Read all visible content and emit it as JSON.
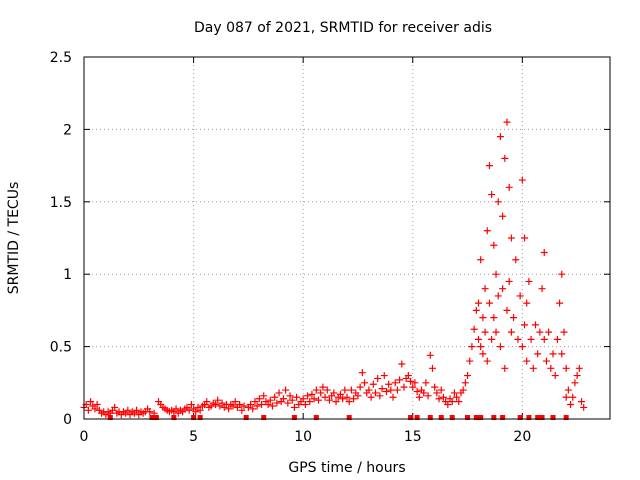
{
  "chart_data": {
    "type": "scatter",
    "title": "Day 087 of 2021, SRMTID for receiver adis",
    "xlabel": "GPS time / hours",
    "ylabel": "SRMTID / TECUs",
    "xlim": [
      0,
      24
    ],
    "ylim": [
      0,
      2.5
    ],
    "xticks": [
      0,
      5,
      10,
      15,
      20
    ],
    "yticks": [
      0,
      0.5,
      1,
      1.5,
      2,
      2.5
    ],
    "xtick_labels": [
      "0",
      "5",
      "10",
      "15",
      "20"
    ],
    "ytick_labels": [
      "0",
      "0.5",
      "1",
      "1.5",
      "2",
      "2.5"
    ],
    "grid": true,
    "marker": "+",
    "series": [
      {
        "name": "SRMTID",
        "color": "#ff0000",
        "points": [
          [
            0.0,
            0.08
          ],
          [
            0.1,
            0.1
          ],
          [
            0.2,
            0.06
          ],
          [
            0.3,
            0.12
          ],
          [
            0.4,
            0.09
          ],
          [
            0.5,
            0.07
          ],
          [
            0.6,
            0.1
          ],
          [
            0.7,
            0.06
          ],
          [
            0.8,
            0.04
          ],
          [
            0.9,
            0.05
          ],
          [
            1.0,
            0.03
          ],
          [
            1.1,
            0.05
          ],
          [
            1.2,
            0.04
          ],
          [
            1.3,
            0.06
          ],
          [
            1.4,
            0.08
          ],
          [
            1.5,
            0.04
          ],
          [
            1.6,
            0.05
          ],
          [
            1.7,
            0.03
          ],
          [
            1.8,
            0.05
          ],
          [
            1.9,
            0.04
          ],
          [
            2.0,
            0.06
          ],
          [
            2.1,
            0.03
          ],
          [
            2.2,
            0.05
          ],
          [
            2.3,
            0.04
          ],
          [
            2.4,
            0.06
          ],
          [
            2.5,
            0.03
          ],
          [
            2.6,
            0.05
          ],
          [
            2.7,
            0.04
          ],
          [
            2.8,
            0.05
          ],
          [
            2.9,
            0.07
          ],
          [
            3.0,
            0.05
          ],
          [
            3.2,
            0.04
          ],
          [
            3.4,
            0.12
          ],
          [
            3.5,
            0.1
          ],
          [
            3.6,
            0.08
          ],
          [
            3.7,
            0.07
          ],
          [
            3.8,
            0.06
          ],
          [
            3.9,
            0.05
          ],
          [
            4.0,
            0.06
          ],
          [
            4.1,
            0.05
          ],
          [
            4.2,
            0.07
          ],
          [
            4.3,
            0.04
          ],
          [
            4.4,
            0.06
          ],
          [
            4.5,
            0.05
          ],
          [
            4.6,
            0.07
          ],
          [
            4.7,
            0.08
          ],
          [
            4.8,
            0.06
          ],
          [
            4.9,
            0.1
          ],
          [
            5.0,
            0.07
          ],
          [
            5.1,
            0.05
          ],
          [
            5.2,
            0.08
          ],
          [
            5.3,
            0.06
          ],
          [
            5.4,
            0.09
          ],
          [
            5.5,
            0.1
          ],
          [
            5.6,
            0.12
          ],
          [
            5.7,
            0.08
          ],
          [
            5.8,
            0.09
          ],
          [
            5.9,
            0.11
          ],
          [
            6.0,
            0.1
          ],
          [
            6.1,
            0.13
          ],
          [
            6.2,
            0.09
          ],
          [
            6.3,
            0.11
          ],
          [
            6.4,
            0.08
          ],
          [
            6.5,
            0.1
          ],
          [
            6.6,
            0.07
          ],
          [
            6.7,
            0.1
          ],
          [
            6.8,
            0.09
          ],
          [
            6.9,
            0.12
          ],
          [
            7.0,
            0.08
          ],
          [
            7.1,
            0.1
          ],
          [
            7.2,
            0.06
          ],
          [
            7.3,
            0.09
          ],
          [
            7.5,
            0.08
          ],
          [
            7.6,
            0.1
          ],
          [
            7.7,
            0.07
          ],
          [
            7.8,
            0.12
          ],
          [
            7.9,
            0.09
          ],
          [
            8.0,
            0.14
          ],
          [
            8.1,
            0.1
          ],
          [
            8.2,
            0.16
          ],
          [
            8.3,
            0.12
          ],
          [
            8.4,
            0.1
          ],
          [
            8.5,
            0.13
          ],
          [
            8.6,
            0.09
          ],
          [
            8.7,
            0.15
          ],
          [
            8.8,
            0.11
          ],
          [
            8.9,
            0.18
          ],
          [
            9.0,
            0.12
          ],
          [
            9.1,
            0.14
          ],
          [
            9.2,
            0.2
          ],
          [
            9.3,
            0.11
          ],
          [
            9.4,
            0.16
          ],
          [
            9.5,
            0.13
          ],
          [
            9.6,
            0.08
          ],
          [
            9.7,
            0.15
          ],
          [
            9.8,
            0.1
          ],
          [
            9.9,
            0.12
          ],
          [
            10.0,
            0.14
          ],
          [
            10.1,
            0.1
          ],
          [
            10.2,
            0.16
          ],
          [
            10.3,
            0.12
          ],
          [
            10.4,
            0.17
          ],
          [
            10.5,
            0.14
          ],
          [
            10.6,
            0.2
          ],
          [
            10.7,
            0.13
          ],
          [
            10.8,
            0.18
          ],
          [
            10.9,
            0.22
          ],
          [
            11.0,
            0.15
          ],
          [
            11.1,
            0.2
          ],
          [
            11.2,
            0.13
          ],
          [
            11.3,
            0.16
          ],
          [
            11.4,
            0.18
          ],
          [
            11.5,
            0.12
          ],
          [
            11.6,
            0.15
          ],
          [
            11.7,
            0.17
          ],
          [
            11.8,
            0.14
          ],
          [
            11.9,
            0.2
          ],
          [
            12.0,
            0.15
          ],
          [
            12.1,
            0.12
          ],
          [
            12.2,
            0.2
          ],
          [
            12.3,
            0.14
          ],
          [
            12.4,
            0.18
          ],
          [
            12.5,
            0.16
          ],
          [
            12.6,
            0.22
          ],
          [
            12.7,
            0.32
          ],
          [
            12.8,
            0.25
          ],
          [
            12.9,
            0.18
          ],
          [
            13.0,
            0.2
          ],
          [
            13.1,
            0.15
          ],
          [
            13.2,
            0.24
          ],
          [
            13.3,
            0.18
          ],
          [
            13.4,
            0.28
          ],
          [
            13.5,
            0.16
          ],
          [
            13.6,
            0.21
          ],
          [
            13.7,
            0.3
          ],
          [
            13.8,
            0.19
          ],
          [
            13.9,
            0.24
          ],
          [
            14.0,
            0.2
          ],
          [
            14.1,
            0.15
          ],
          [
            14.2,
            0.25
          ],
          [
            14.3,
            0.2
          ],
          [
            14.4,
            0.27
          ],
          [
            14.5,
            0.38
          ],
          [
            14.6,
            0.22
          ],
          [
            14.7,
            0.28
          ],
          [
            14.8,
            0.3
          ],
          [
            14.9,
            0.26
          ],
          [
            15.0,
            0.22
          ],
          [
            15.1,
            0.25
          ],
          [
            15.2,
            0.19
          ],
          [
            15.3,
            0.15
          ],
          [
            15.4,
            0.2
          ],
          [
            15.5,
            0.18
          ],
          [
            15.6,
            0.25
          ],
          [
            15.7,
            0.16
          ],
          [
            15.8,
            0.44
          ],
          [
            15.9,
            0.35
          ],
          [
            16.0,
            0.22
          ],
          [
            16.1,
            0.18
          ],
          [
            16.2,
            0.14
          ],
          [
            16.3,
            0.2
          ],
          [
            16.4,
            0.15
          ],
          [
            16.5,
            0.12
          ],
          [
            16.6,
            0.1
          ],
          [
            16.7,
            0.14
          ],
          [
            16.8,
            0.12
          ],
          [
            16.9,
            0.18
          ],
          [
            17.0,
            0.15
          ],
          [
            17.1,
            0.12
          ],
          [
            17.2,
            0.18
          ],
          [
            17.3,
            0.2
          ],
          [
            17.4,
            0.25
          ],
          [
            17.5,
            0.3
          ],
          [
            17.6,
            0.4
          ],
          [
            17.7,
            0.5
          ],
          [
            17.8,
            0.62
          ],
          [
            17.9,
            0.75
          ],
          [
            18.0,
            0.8
          ],
          [
            18.0,
            0.55
          ],
          [
            18.1,
            1.1
          ],
          [
            18.1,
            0.5
          ],
          [
            18.2,
            0.7
          ],
          [
            18.2,
            0.45
          ],
          [
            18.3,
            0.9
          ],
          [
            18.3,
            0.6
          ],
          [
            18.4,
            1.3
          ],
          [
            18.4,
            0.4
          ],
          [
            18.5,
            1.75
          ],
          [
            18.5,
            0.8
          ],
          [
            18.6,
            1.55
          ],
          [
            18.6,
            0.55
          ],
          [
            18.7,
            1.2
          ],
          [
            18.7,
            0.7
          ],
          [
            18.8,
            1.0
          ],
          [
            18.8,
            0.6
          ],
          [
            18.9,
            1.5
          ],
          [
            18.9,
            0.85
          ],
          [
            19.0,
            1.95
          ],
          [
            19.0,
            0.5
          ],
          [
            19.1,
            0.9
          ],
          [
            19.1,
            1.4
          ],
          [
            19.2,
            1.8
          ],
          [
            19.2,
            0.35
          ],
          [
            19.3,
            2.05
          ],
          [
            19.3,
            0.75
          ],
          [
            19.4,
            1.6
          ],
          [
            19.4,
            0.95
          ],
          [
            19.5,
            1.25
          ],
          [
            19.5,
            0.6
          ],
          [
            19.6,
            0.7
          ],
          [
            19.7,
            1.1
          ],
          [
            19.8,
            0.55
          ],
          [
            19.9,
            0.85
          ],
          [
            20.0,
            1.65
          ],
          [
            20.0,
            0.5
          ],
          [
            20.1,
            1.25
          ],
          [
            20.1,
            0.65
          ],
          [
            20.2,
            0.8
          ],
          [
            20.2,
            0.4
          ],
          [
            20.3,
            0.95
          ],
          [
            20.4,
            0.55
          ],
          [
            20.5,
            0.35
          ],
          [
            20.6,
            0.65
          ],
          [
            20.7,
            0.45
          ],
          [
            20.8,
            0.6
          ],
          [
            20.9,
            0.9
          ],
          [
            21.0,
            1.15
          ],
          [
            21.0,
            0.55
          ],
          [
            21.1,
            0.4
          ],
          [
            21.2,
            0.6
          ],
          [
            21.3,
            0.35
          ],
          [
            21.4,
            0.45
          ],
          [
            21.5,
            0.3
          ],
          [
            21.6,
            0.55
          ],
          [
            21.7,
            0.8
          ],
          [
            21.8,
            1.0
          ],
          [
            21.8,
            0.45
          ],
          [
            21.9,
            0.6
          ],
          [
            22.0,
            0.35
          ],
          [
            22.0,
            0.15
          ],
          [
            22.1,
            0.2
          ],
          [
            22.2,
            0.1
          ],
          [
            22.3,
            0.15
          ],
          [
            22.4,
            0.25
          ],
          [
            22.5,
            0.3
          ],
          [
            22.6,
            0.35
          ],
          [
            22.7,
            0.12
          ],
          [
            22.8,
            0.08
          ]
        ]
      }
    ],
    "zero_markers_x": [
      1.2,
      3.1,
      3.3,
      4.1,
      5.0,
      5.3,
      7.4,
      8.2,
      9.6,
      10.6,
      12.1,
      14.9,
      15.2,
      15.8,
      16.3,
      16.8,
      17.5,
      17.9,
      18.1,
      18.7,
      19.1,
      19.9,
      20.3,
      20.7,
      20.9,
      21.4,
      22.0
    ],
    "zero_markers_shape": "square"
  }
}
